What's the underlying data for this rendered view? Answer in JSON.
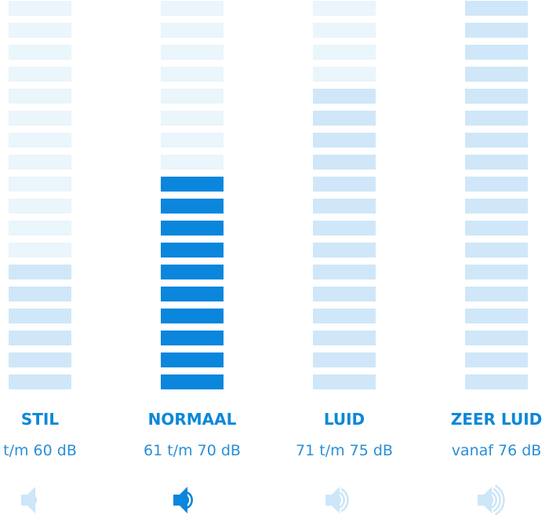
{
  "columns": [
    {
      "title": "STIL",
      "range": "t/m 60 dB"
    },
    {
      "title": "NORMAAL",
      "range": "61 t/m 70 dB"
    },
    {
      "title": "LUID",
      "range": "71 t/m 75 dB"
    },
    {
      "title": "ZEER LUID",
      "range": "vanaf 76 dB"
    }
  ]
}
